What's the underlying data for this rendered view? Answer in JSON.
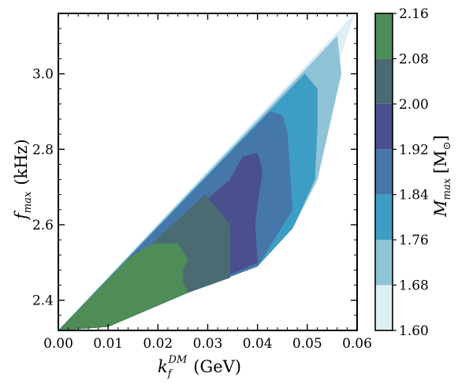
{
  "chart_data": {
    "type": "filled-contour",
    "xlabel": {
      "main": "k",
      "sub": "f",
      "sup": "DM",
      "unit": "(GeV)"
    },
    "ylabel": {
      "main": "f",
      "sub": "max",
      "unit": "(kHz)"
    },
    "colorbar_label": {
      "main": "M",
      "sub": "max",
      "unit": "[M",
      "unit_sub": "⊙",
      "close": "]"
    },
    "xlim": [
      0.0,
      0.06
    ],
    "ylim": [
      2.32,
      3.16
    ],
    "x_ticks": [
      "0.00",
      "0.01",
      "0.02",
      "0.03",
      "0.04",
      "0.05",
      "0.06"
    ],
    "y_ticks": [
      "2.4",
      "2.6",
      "2.8",
      "3.0"
    ],
    "colorbar_ticks": [
      "1.60",
      "1.68",
      "1.76",
      "1.84",
      "1.92",
      "2.00",
      "2.08",
      "2.16"
    ],
    "levels": [
      1.6,
      1.68,
      1.76,
      1.84,
      1.92,
      2.0,
      2.08,
      2.16
    ],
    "level_colors": [
      "#ddeef5",
      "#8ec3d8",
      "#3e9dc4",
      "#4577aa",
      "#4a4f8e",
      "#4b6b72",
      "#4e8c58"
    ],
    "regions": [
      {
        "level_min": 1.6,
        "color": "#ddeef5",
        "points": [
          [
            0.0,
            2.32
          ],
          [
            0.0595,
            3.16
          ],
          [
            0.0565,
            3.04
          ],
          [
            0.052,
            2.72
          ],
          [
            0.047,
            2.59
          ],
          [
            0.04,
            2.49
          ],
          [
            0.026,
            2.42
          ],
          [
            0.01,
            2.33
          ]
        ]
      },
      {
        "level_min": 1.68,
        "color": "#8ec3d8",
        "points": [
          [
            0.0,
            2.32
          ],
          [
            0.056,
            3.1
          ],
          [
            0.0568,
            3.0
          ],
          [
            0.052,
            2.72
          ],
          [
            0.047,
            2.59
          ],
          [
            0.04,
            2.49
          ],
          [
            0.026,
            2.42
          ],
          [
            0.01,
            2.33
          ]
        ]
      },
      {
        "level_min": 1.76,
        "color": "#3e9dc4",
        "points": [
          [
            0.0,
            2.32
          ],
          [
            0.0495,
            3.0
          ],
          [
            0.052,
            2.96
          ],
          [
            0.052,
            2.86
          ],
          [
            0.0515,
            2.72
          ],
          [
            0.047,
            2.59
          ],
          [
            0.04,
            2.49
          ],
          [
            0.026,
            2.42
          ],
          [
            0.01,
            2.33
          ]
        ]
      },
      {
        "level_min": 1.84,
        "color": "#4577aa",
        "points": [
          [
            0.0,
            2.32
          ],
          [
            0.0425,
            2.9
          ],
          [
            0.045,
            2.89
          ],
          [
            0.046,
            2.84
          ],
          [
            0.0465,
            2.74
          ],
          [
            0.047,
            2.64
          ],
          [
            0.04,
            2.49
          ],
          [
            0.026,
            2.42
          ],
          [
            0.01,
            2.33
          ]
        ]
      },
      {
        "level_min": 1.92,
        "color": "#4a4f8e",
        "points": [
          [
            0.0,
            2.32
          ],
          [
            0.0345,
            2.72
          ],
          [
            0.037,
            2.78
          ],
          [
            0.04,
            2.79
          ],
          [
            0.041,
            2.74
          ],
          [
            0.04,
            2.66
          ],
          [
            0.0395,
            2.6
          ],
          [
            0.04,
            2.5
          ],
          [
            0.026,
            2.42
          ],
          [
            0.01,
            2.33
          ]
        ]
      },
      {
        "level_min": 2.0,
        "color": "#4b6b72",
        "points": [
          [
            0.0,
            2.32
          ],
          [
            0.0295,
            2.68
          ],
          [
            0.0345,
            2.6
          ],
          [
            0.0345,
            2.46
          ],
          [
            0.026,
            2.42
          ],
          [
            0.01,
            2.33
          ]
        ]
      },
      {
        "level_min": 2.08,
        "color": "#4e8c58",
        "points": [
          [
            0.0,
            2.32
          ],
          [
            0.014,
            2.51
          ],
          [
            0.019,
            2.55
          ],
          [
            0.024,
            2.55
          ],
          [
            0.026,
            2.51
          ],
          [
            0.025,
            2.48
          ],
          [
            0.025,
            2.45
          ],
          [
            0.026,
            2.42
          ],
          [
            0.01,
            2.33
          ]
        ]
      }
    ]
  }
}
